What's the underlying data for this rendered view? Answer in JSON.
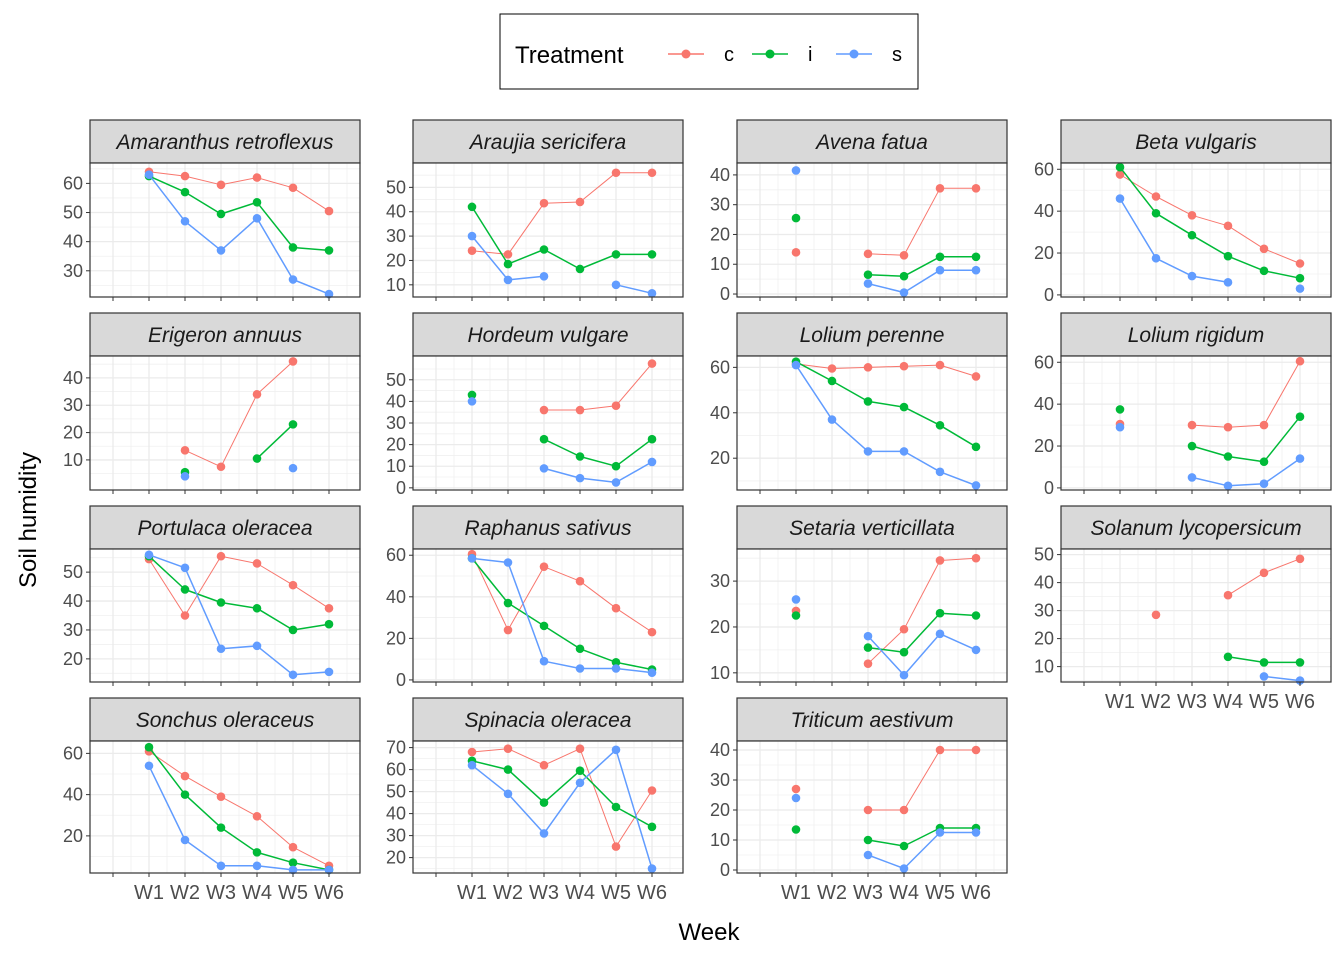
{
  "chart_data": {
    "type": "line",
    "layout": "facet_wrap",
    "xlabel": "Week",
    "ylabel": "Soil humidity",
    "categories": [
      "W1",
      "W2",
      "W3",
      "W4",
      "W5",
      "W6"
    ],
    "legend": {
      "title": "Treatment",
      "position": "top",
      "entries": [
        {
          "key": "c",
          "label": "c",
          "color": "#F8766D"
        },
        {
          "key": "i",
          "label": "i",
          "color": "#00BA38"
        },
        {
          "key": "s",
          "label": "s",
          "color": "#619CFF"
        }
      ]
    },
    "grid": true,
    "facets": [
      {
        "title": "Amaranthus retroflexus",
        "yticks": [
          30,
          40,
          50,
          60
        ],
        "ylim": [
          21,
          67
        ],
        "series": {
          "c": [
            64,
            62.5,
            59.5,
            62,
            58.5,
            50.5
          ],
          "i": [
            62.5,
            57,
            49.5,
            53.5,
            38,
            37
          ],
          "s": [
            63,
            47,
            37,
            48,
            27,
            22
          ]
        }
      },
      {
        "title": "Araujia sericifera",
        "yticks": [
          10,
          20,
          30,
          40,
          50
        ],
        "ylim": [
          5,
          60
        ],
        "series": {
          "c": [
            24,
            22.5,
            43.5,
            44,
            56,
            56
          ],
          "i": [
            42,
            18.5,
            24.5,
            16.5,
            22.5,
            22.5
          ],
          "s": [
            30,
            12,
            13.5,
            null,
            10,
            6.5
          ]
        }
      },
      {
        "title": "Avena fatua",
        "yticks": [
          0,
          10,
          20,
          30,
          40
        ],
        "ylim": [
          -1,
          44
        ],
        "series": {
          "c": [
            14,
            null,
            13.5,
            13,
            35.5,
            35.5
          ],
          "i": [
            25.5,
            null,
            6.5,
            6,
            12.5,
            12.5
          ],
          "s": [
            41.5,
            null,
            3.5,
            0.5,
            8,
            8
          ]
        }
      },
      {
        "title": "Beta vulgaris",
        "yticks": [
          0,
          20,
          40,
          60
        ],
        "ylim": [
          -1,
          63
        ],
        "series": {
          "c": [
            57.5,
            47,
            38,
            33,
            22,
            15
          ],
          "i": [
            61,
            39,
            28.5,
            18.5,
            11.5,
            8
          ],
          "s": [
            46,
            17.5,
            9,
            6,
            null,
            3
          ]
        }
      },
      {
        "title": "Erigeron annuus",
        "yticks": [
          10,
          20,
          30,
          40
        ],
        "ylim": [
          -1,
          48
        ],
        "series": {
          "c": [
            null,
            13.5,
            7.5,
            34,
            46,
            null
          ],
          "i": [
            null,
            5.5,
            null,
            10.5,
            23,
            null
          ],
          "s": [
            null,
            4,
            null,
            null,
            7,
            null
          ]
        }
      },
      {
        "title": "Hordeum vulgare",
        "yticks": [
          0,
          10,
          20,
          30,
          40,
          50
        ],
        "ylim": [
          -1,
          61
        ],
        "series": {
          "c": [
            null,
            null,
            36,
            36,
            38,
            57.5
          ],
          "i": [
            43,
            null,
            22.5,
            14.5,
            10,
            22.5
          ],
          "s": [
            40,
            null,
            9,
            4.5,
            2.5,
            12
          ]
        }
      },
      {
        "title": "Lolium perenne",
        "yticks": [
          20,
          40,
          60
        ],
        "ylim": [
          6,
          65
        ],
        "series": {
          "c": [
            61.5,
            59.5,
            60,
            60.5,
            61,
            56
          ],
          "i": [
            62.5,
            54,
            45,
            42.5,
            34.5,
            25
          ],
          "s": [
            61,
            37,
            23,
            23,
            14,
            8
          ]
        }
      },
      {
        "title": "Lolium rigidum",
        "yticks": [
          0,
          20,
          40,
          60
        ],
        "ylim": [
          -1,
          63
        ],
        "series": {
          "c": [
            30.5,
            null,
            30,
            29,
            30,
            60.5
          ],
          "i": [
            37.5,
            null,
            20,
            15,
            12.5,
            34
          ],
          "s": [
            29,
            null,
            5,
            1,
            2,
            14
          ]
        }
      },
      {
        "title": "Portulaca oleracea",
        "yticks": [
          20,
          30,
          40,
          50
        ],
        "ylim": [
          12,
          58
        ],
        "series": {
          "c": [
            54.5,
            35,
            55.5,
            53,
            45.5,
            37.5
          ],
          "i": [
            55.5,
            44,
            39.5,
            37.5,
            30,
            32
          ],
          "s": [
            56,
            51.5,
            23.5,
            24.5,
            14.5,
            15.5
          ]
        }
      },
      {
        "title": "Raphanus sativus",
        "yticks": [
          0,
          20,
          40,
          60
        ],
        "ylim": [
          -1,
          63
        ],
        "series": {
          "c": [
            60.5,
            24,
            54.5,
            47.5,
            34.5,
            23
          ],
          "i": [
            58.5,
            37,
            26,
            15,
            8.5,
            5
          ],
          "s": [
            58.5,
            56.5,
            9,
            5.5,
            5.5,
            3.5
          ]
        }
      },
      {
        "title": "Setaria verticillata",
        "yticks": [
          10,
          20,
          30
        ],
        "ylim": [
          8,
          37
        ],
        "series": {
          "c": [
            23.5,
            null,
            12,
            19.5,
            34.5,
            35
          ],
          "i": [
            22.5,
            null,
            15.5,
            14.5,
            23,
            22.5
          ],
          "s": [
            26,
            null,
            18,
            9.5,
            18.5,
            15
          ]
        }
      },
      {
        "title": "Solanum lycopersicum",
        "yticks": [
          10,
          20,
          30,
          40,
          50
        ],
        "ylim": [
          4.5,
          52
        ],
        "series": {
          "c": [
            null,
            28.5,
            null,
            35.5,
            43.5,
            48.5
          ],
          "i": [
            null,
            null,
            null,
            13.5,
            11.5,
            11.5
          ],
          "s": [
            null,
            null,
            null,
            null,
            6.5,
            5
          ]
        }
      },
      {
        "title": "Sonchus oleraceus",
        "yticks": [
          20,
          40,
          60
        ],
        "ylim": [
          2,
          66
        ],
        "series": {
          "c": [
            61,
            49,
            39,
            29.5,
            14.5,
            5.5
          ],
          "i": [
            63,
            40,
            24,
            12,
            7,
            3.5
          ],
          "s": [
            54,
            18,
            5.5,
            5.5,
            3.5,
            3.5
          ]
        }
      },
      {
        "title": "Spinacia oleracea",
        "yticks": [
          20,
          30,
          40,
          50,
          60,
          70
        ],
        "ylim": [
          13,
          73
        ],
        "series": {
          "c": [
            68,
            69.5,
            62,
            69.5,
            25,
            50.5
          ],
          "i": [
            64,
            60,
            45,
            59.5,
            43,
            34
          ],
          "s": [
            62,
            49,
            31,
            54,
            69,
            15
          ]
        }
      },
      {
        "title": "Triticum aestivum",
        "yticks": [
          0,
          10,
          20,
          30,
          40
        ],
        "ylim": [
          -1,
          43
        ],
        "series": {
          "c": [
            27,
            null,
            20,
            20,
            40,
            40
          ],
          "i": [
            13.5,
            null,
            10,
            8,
            14,
            14
          ],
          "s": [
            24,
            null,
            5,
            0.5,
            12.5,
            12.5
          ]
        }
      }
    ]
  }
}
